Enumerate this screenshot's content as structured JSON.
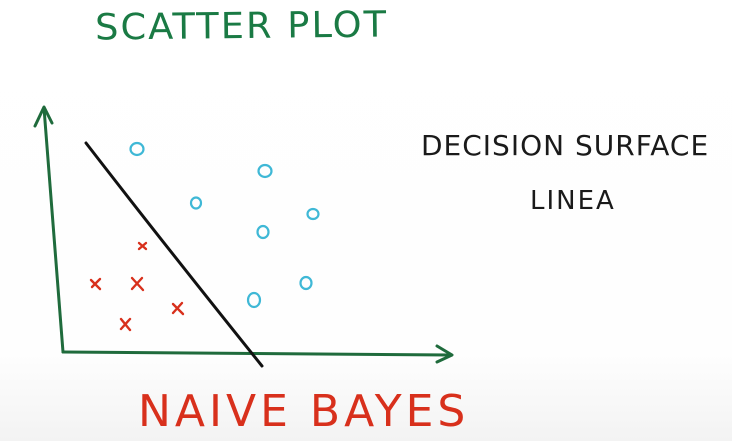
{
  "title": "SCATTER PLOT",
  "annotation": {
    "line1": "DECISION SURFACE",
    "line2": "LINEA"
  },
  "footer": "NAIVE BAYES",
  "colors": {
    "title": "#1a7a44",
    "axes": "#1f6b3c",
    "boundary": "#111111",
    "circles": "#3fb8d6",
    "crosses": "#d8301c",
    "footer": "#d8301c"
  },
  "circle_marker": "o",
  "cross_marker": "x"
}
